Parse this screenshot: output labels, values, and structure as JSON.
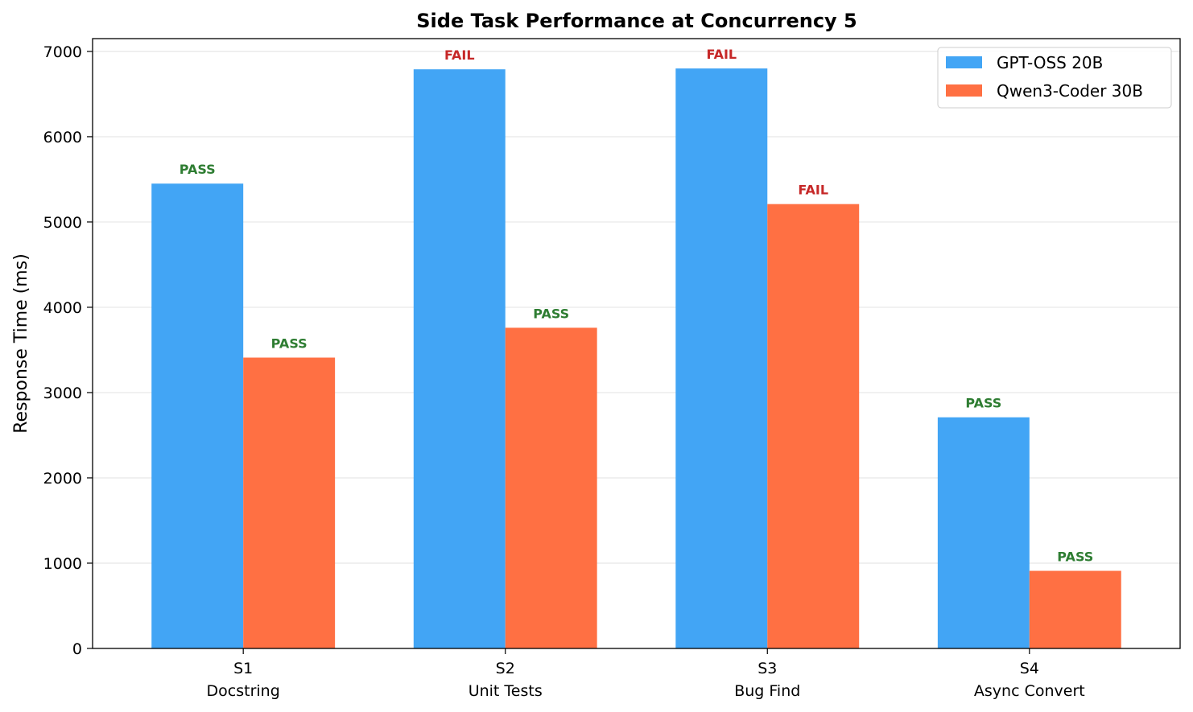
{
  "chart_data": {
    "type": "bar",
    "title": "Side Task Performance at Concurrency 5",
    "xlabel": "",
    "ylabel": "Response Time (ms)",
    "ylim": [
      0,
      7150
    ],
    "yticks": [
      0,
      1000,
      2000,
      3000,
      4000,
      5000,
      6000,
      7000
    ],
    "grid": "y",
    "legend_position": "top-right",
    "categories": [
      {
        "id": "S1",
        "name": "Docstring"
      },
      {
        "id": "S2",
        "name": "Unit Tests"
      },
      {
        "id": "S3",
        "name": "Bug Find"
      },
      {
        "id": "S4",
        "name": "Async Convert"
      }
    ],
    "series": [
      {
        "name": "GPT-OSS 20B",
        "color": "#42a5f5",
        "values": [
          5450,
          6790,
          6800,
          2710
        ],
        "status": [
          "PASS",
          "FAIL",
          "FAIL",
          "PASS"
        ]
      },
      {
        "name": "Qwen3-Coder 30B",
        "color": "#ff7043",
        "values": [
          3410,
          3760,
          5210,
          910
        ],
        "status": [
          "PASS",
          "PASS",
          "FAIL",
          "PASS"
        ]
      }
    ],
    "status_colors": {
      "PASS": "#2e7d32",
      "FAIL": "#c62828"
    }
  }
}
